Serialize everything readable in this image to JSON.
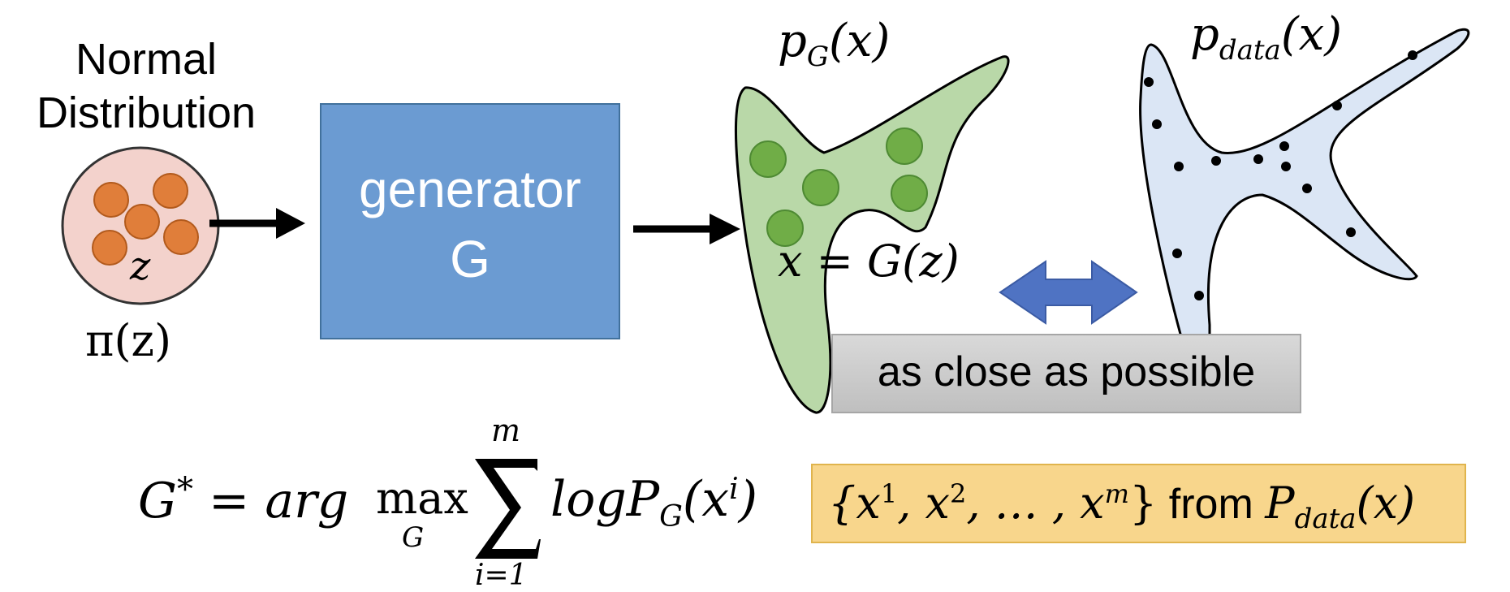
{
  "normal_dist": {
    "line1": "Normal",
    "line2": "Distribution",
    "var_label": "z",
    "pdf_label": "π(z)"
  },
  "generator": {
    "line1": "generator",
    "line2": "G"
  },
  "pg": {
    "base": "p",
    "sub": "G",
    "arg": "(x)"
  },
  "pdata": {
    "base": "p",
    "sub": "data",
    "arg": "(x)"
  },
  "mapping": {
    "text": "x = G(z)"
  },
  "close_box": {
    "label": "as close as possible"
  },
  "objective": {
    "lhs": "G",
    "star": "*",
    "eq": " = arg ",
    "max": "max",
    "max_sub": "G",
    "sum_top": "m",
    "sum_bottom": "i=1",
    "term_log": "logP",
    "term_sub": "G",
    "term_arg_open": "(x",
    "term_sup": "i",
    "term_arg_close": ")"
  },
  "sample_box": {
    "open": "{x",
    "s1": "1",
    "c1": ", x",
    "s2": "2",
    "c2": ", … , x",
    "sm": "m",
    "close": "}",
    "from": " from ",
    "P": "P",
    "P_sub": "data",
    "P_arg": "(x)"
  },
  "colors": {
    "generator_fill": "#6b9bd2",
    "pg_fill": "#b9d8a8",
    "pg_dot": "#70ad47",
    "pdata_fill": "#dbe6f5",
    "ball_fill": "#e07e3a",
    "circle_fill": "#f3d2cc",
    "double_arrow": "#4f73c3",
    "close_box_fill": "#cccccc",
    "sample_box_fill": "#f8d68c"
  }
}
